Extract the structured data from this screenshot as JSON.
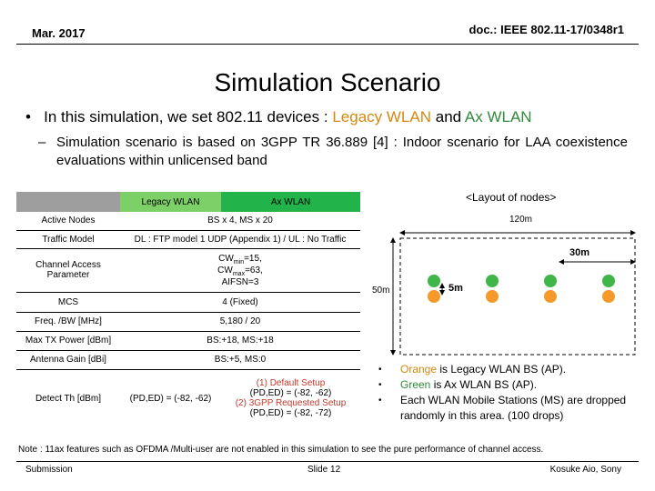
{
  "header": {
    "date": "Mar. 2017",
    "doc_id": "doc.: IEEE 802.11-17/0348r1"
  },
  "title": "Simulation Scenario",
  "intro": {
    "bullet": "•",
    "prefix": "In this simulation, we set 802.11 devices :",
    "legacy": "Legacy WLAN",
    "and": "and",
    "ax": "Ax WLAN"
  },
  "sub_bullet": {
    "dash": "–",
    "text": "Simulation scenario is based on 3GPP TR 36.889 [4] : Indoor scenario for LAA coexistence evaluations within unlicensed band"
  },
  "table": {
    "col_legacy": "Legacy WLAN",
    "col_ax": "Ax WLAN",
    "rows": {
      "active_nodes": {
        "label": "Active Nodes",
        "value": "BS x 4, MS x 20"
      },
      "traffic_model": {
        "label": "Traffic Model",
        "value": "DL : FTP model 1 UDP (Appendix 1) / UL : No Traffic"
      },
      "channel_access": {
        "label": "Channel Access Parameter",
        "cw_min_prefix": "CW",
        "cw_min_sub": "min",
        "cw_min_val": "=15,",
        "cw_max_prefix": "CW",
        "cw_max_sub": "max",
        "cw_max_val": "=63,",
        "aifsn": "AIFSN=3"
      },
      "mcs": {
        "label": "MCS",
        "value": "4 (Fixed)"
      },
      "freq": {
        "label": "Freq. /BW [MHz]",
        "value": "5,180 / 20"
      },
      "tx_power": {
        "label": "Max TX Power [dBm]",
        "value": "BS:+18, MS:+18"
      },
      "antenna_gain": {
        "label": "Antenna Gain [dBi]",
        "value": "BS:+5, MS:0"
      },
      "detect_th": {
        "label": "Detect Th [dBm]",
        "legacy_value": "(PD,ED) = (-82, -62)",
        "ax_line1": "(1) Default Setup",
        "ax_line2": "(PD,ED) = (-82, -62)",
        "ax_line3": "(2) 3GPP Requested Setup",
        "ax_line4": "(PD,ED) = (-82, -72)"
      }
    }
  },
  "layout": {
    "title": "<Layout of nodes>",
    "width_label": "120m",
    "spacing_label": "30m",
    "height_label": "50m",
    "offset_label": "5m",
    "ap_count_per_type": 4,
    "colors": {
      "legacy": "#f39a2b",
      "ax": "#3fb54a"
    }
  },
  "legend": {
    "bullet": "•",
    "orange_word": "Orange",
    "orange_rest": "is Legacy WLAN BS (AP).",
    "green_word": "Green",
    "green_rest": "is Ax WLAN BS (AP).",
    "stations_line1": "Each WLAN Mobile Stations (MS)  are dropped",
    "stations_line2": "randomly in this area. (100 drops)"
  },
  "note": "Note : 11ax features such as OFDMA /Multi-user are not enabled in this simulation to see the pure  performance of channel access.",
  "footer": {
    "left": "Submission",
    "center": "Slide 12",
    "right": "Kosuke Aio, Sony"
  }
}
